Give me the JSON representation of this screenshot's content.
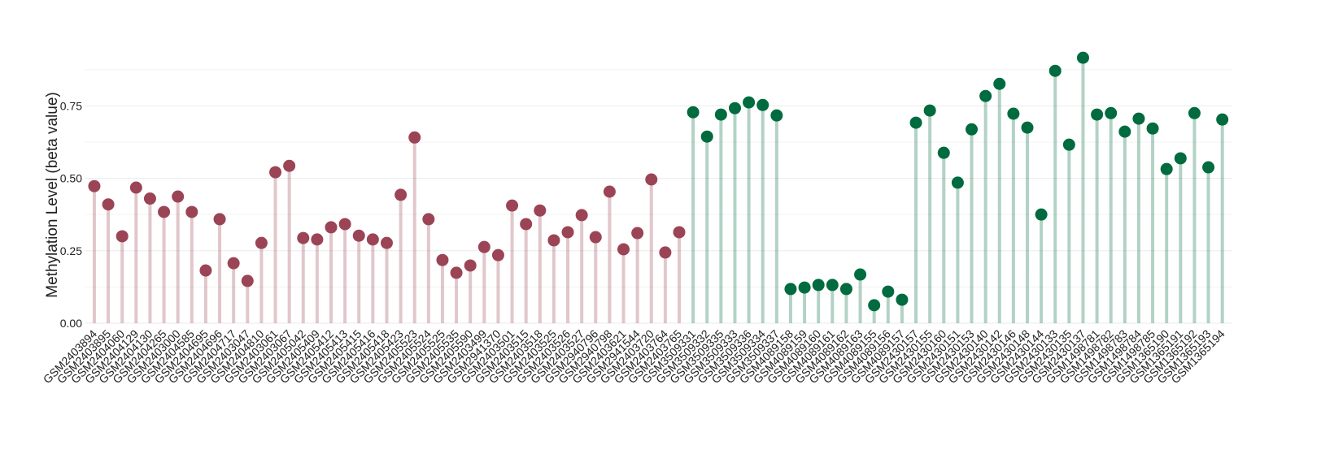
{
  "chart_data": {
    "type": "lollipop",
    "y_label": "Methylation Level (beta value)",
    "categories": [
      "GSM2403894",
      "GSM2403895",
      "GSM2404060",
      "GSM2404129",
      "GSM2404130",
      "GSM2404265",
      "GSM2403000",
      "GSM2404585",
      "GSM2404695",
      "GSM2404696",
      "GSM2404717",
      "GSM2403047",
      "GSM2404810",
      "GSM2403061",
      "GSM2403067",
      "GSM2405042",
      "GSM2405409",
      "GSM2405412",
      "GSM2405413",
      "GSM2405415",
      "GSM2405416",
      "GSM2405418",
      "GSM2405423",
      "GSM2405523",
      "GSM2405524",
      "GSM2405525",
      "GSM2405535",
      "GSM2405590",
      "GSM2403499",
      "GSM2941370",
      "GSM2403501",
      "GSM2403515",
      "GSM2403518",
      "GSM2403525",
      "GSM2403526",
      "GSM2403527",
      "GSM2940796",
      "GSM2940798",
      "GSM2403621",
      "GSM2941544",
      "GSM2403720",
      "GSM2403764",
      "GSM2403765",
      "GSM3509331",
      "GSM3509332",
      "GSM3509335",
      "GSM3509333",
      "GSM3509336",
      "GSM3509334",
      "GSM3509337",
      "GSM4089158",
      "GSM4089159",
      "GSM4089160",
      "GSM4089161",
      "GSM4089162",
      "GSM4089163",
      "GSM4089155",
      "GSM4089156",
      "GSM4089157",
      "GSM2430157",
      "GSM2430155",
      "GSM2430160",
      "GSM2430151",
      "GSM2430153",
      "GSM2430140",
      "GSM2430142",
      "GSM2430146",
      "GSM2430148",
      "GSM2430144",
      "GSM2430133",
      "GSM2430135",
      "GSM2430137",
      "GSM1498781",
      "GSM1498782",
      "GSM1498783",
      "GSM1498784",
      "GSM1498785",
      "GSM1365190",
      "GSM1365191",
      "GSM1365192",
      "GSM1365193",
      "GSM1365194"
    ],
    "values": [
      0.473,
      0.41,
      0.3,
      0.468,
      0.43,
      0.384,
      0.437,
      0.384,
      0.182,
      0.359,
      0.207,
      0.146,
      0.277,
      0.521,
      0.543,
      0.294,
      0.289,
      0.331,
      0.342,
      0.302,
      0.289,
      0.277,
      0.443,
      0.641,
      0.359,
      0.218,
      0.174,
      0.199,
      0.263,
      0.235,
      0.406,
      0.342,
      0.389,
      0.286,
      0.314,
      0.373,
      0.297,
      0.454,
      0.255,
      0.311,
      0.496,
      0.244,
      0.314,
      0.728,
      0.644,
      0.72,
      0.742,
      0.762,
      0.753,
      0.717,
      0.118,
      0.123,
      0.132,
      0.132,
      0.118,
      0.168,
      0.062,
      0.109,
      0.081,
      0.692,
      0.734,
      0.588,
      0.485,
      0.669,
      0.784,
      0.826,
      0.723,
      0.675,
      0.375,
      0.871,
      0.616,
      0.916,
      0.72,
      0.725,
      0.661,
      0.706,
      0.672,
      0.532,
      0.569,
      0.725,
      0.538,
      0.703
    ],
    "colors": [
      "#9b4456",
      "#9b4456",
      "#9b4456",
      "#9b4456",
      "#9b4456",
      "#9b4456",
      "#9b4456",
      "#9b4456",
      "#9b4456",
      "#9b4456",
      "#9b4456",
      "#9b4456",
      "#9b4456",
      "#9b4456",
      "#9b4456",
      "#9b4456",
      "#9b4456",
      "#9b4456",
      "#9b4456",
      "#9b4456",
      "#9b4456",
      "#9b4456",
      "#9b4456",
      "#9b4456",
      "#9b4456",
      "#9b4456",
      "#9b4456",
      "#9b4456",
      "#9b4456",
      "#9b4456",
      "#9b4456",
      "#9b4456",
      "#9b4456",
      "#9b4456",
      "#9b4456",
      "#9b4456",
      "#9b4456",
      "#9b4456",
      "#9b4456",
      "#9b4456",
      "#9b4456",
      "#9b4456",
      "#9b4456",
      "#006b3f",
      "#006b3f",
      "#006b3f",
      "#006b3f",
      "#006b3f",
      "#006b3f",
      "#006b3f",
      "#006b3f",
      "#006b3f",
      "#006b3f",
      "#006b3f",
      "#006b3f",
      "#006b3f",
      "#006b3f",
      "#006b3f",
      "#006b3f",
      "#006b3f",
      "#006b3f",
      "#006b3f",
      "#006b3f",
      "#006b3f",
      "#006b3f",
      "#006b3f",
      "#006b3f",
      "#006b3f",
      "#006b3f",
      "#006b3f",
      "#006b3f",
      "#006b3f",
      "#006b3f",
      "#006b3f",
      "#006b3f",
      "#006b3f",
      "#006b3f",
      "#006b3f",
      "#006b3f",
      "#006b3f",
      "#006b3f",
      "#006b3f"
    ],
    "ylim": [
      0,
      0.95
    ],
    "yticks": [
      {
        "value": 0,
        "label": "0.00"
      },
      {
        "value": 0.25,
        "label": "0.25"
      },
      {
        "value": 0.5,
        "label": "0.50"
      },
      {
        "value": 0.75,
        "label": "0.75"
      }
    ],
    "minor_gridlines": [
      0.125,
      0.375,
      0.625,
      0.875
    ],
    "grid": true
  }
}
